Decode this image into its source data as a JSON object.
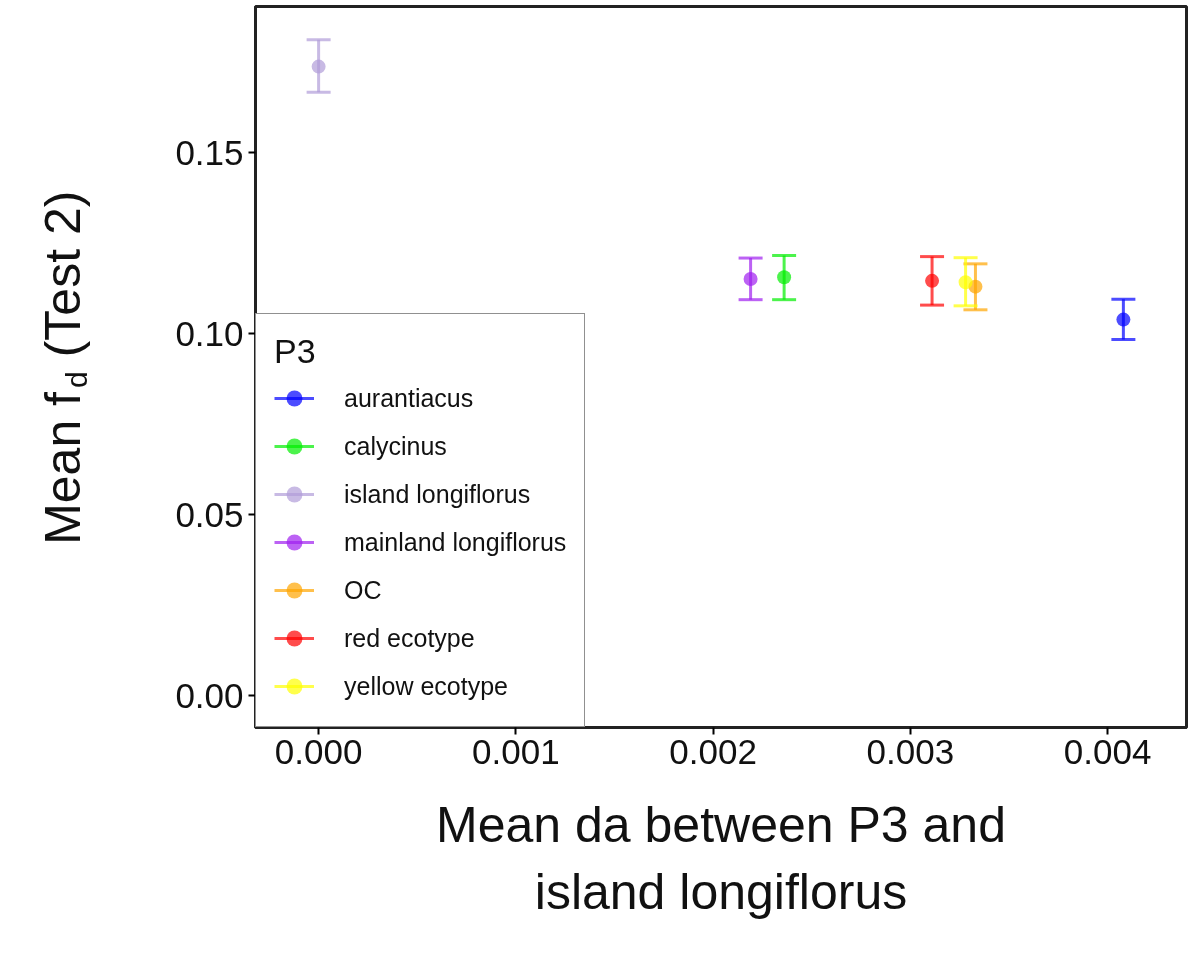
{
  "chart_data": {
    "type": "scatter",
    "xlabel": "Mean da between P3 and island longiflorus",
    "ylabel": "Mean f$_{d}$ (Test 2)",
    "legend_title": "P3",
    "marker": "circle",
    "legend": "bottom left",
    "grid": false,
    "xlim": [
      -0.00032,
      0.0044
    ],
    "ylim": [
      -0.0088,
      0.1904
    ],
    "xticks": [
      {
        "value": 0,
        "label": "0.000"
      },
      {
        "value": 0.001,
        "label": "0.001"
      },
      {
        "value": 0.002,
        "label": "0.002"
      },
      {
        "value": 0.003,
        "label": "0.003"
      },
      {
        "value": 0.004,
        "label": "0.004"
      }
    ],
    "yticks": [
      {
        "value": 0,
        "label": "0.00"
      },
      {
        "value": 0.05,
        "label": "0.05"
      },
      {
        "value": 0.1,
        "label": "0.10"
      },
      {
        "value": 0.15,
        "label": "0.15"
      }
    ],
    "series": [
      {
        "name": "aurantiacus",
        "color": "#0000ff",
        "x": [
          0.00408
        ],
        "values": [
          0.1039
        ],
        "errors": [
          [
            0.0984,
            0.1095
          ]
        ]
      },
      {
        "name": "calycinus",
        "color": "#00ee00",
        "x": [
          0.00236
        ],
        "values": [
          0.1156
        ],
        "errors": [
          [
            0.1094,
            0.1216
          ]
        ]
      },
      {
        "name": "island longiflorus",
        "color": "#b19cd9",
        "x": [
          0.0
        ],
        "values": [
          0.1738
        ],
        "errors": [
          [
            0.1667,
            0.1812
          ]
        ]
      },
      {
        "name": "mainland longiflorus",
        "color": "#a020f0",
        "x": [
          0.00219
        ],
        "values": [
          0.1151
        ],
        "errors": [
          [
            0.1094,
            0.1209
          ]
        ]
      },
      {
        "name": "OC",
        "color": "#ffa500",
        "x": [
          0.00333
        ],
        "values": [
          0.113
        ],
        "errors": [
          [
            0.1066,
            0.1193
          ]
        ]
      },
      {
        "name": "red ecotype",
        "color": "#ff0000",
        "x": [
          0.00311
        ],
        "values": [
          0.1146
        ],
        "errors": [
          [
            0.1079,
            0.1213
          ]
        ]
      },
      {
        "name": "yellow ecotype",
        "color": "#ffff00",
        "x": [
          0.00328
        ],
        "values": [
          0.1142
        ],
        "errors": [
          [
            0.1077,
            0.121
          ]
        ]
      }
    ]
  }
}
